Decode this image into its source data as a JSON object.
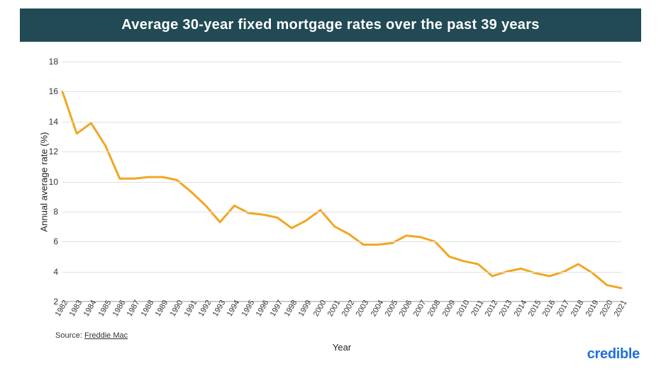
{
  "title": "Average 30-year fixed mortgage rates over the past 39 years",
  "chart": {
    "type": "line",
    "y_label": "Annual average rate (%)",
    "x_label": "Year",
    "ylim": [
      2,
      18
    ],
    "ytick_step": 2,
    "yticks": [
      2,
      4,
      6,
      8,
      10,
      12,
      14,
      16,
      18
    ],
    "grid_color": "#e0e0e0",
    "line_color": "#f2a623",
    "line_width": 3,
    "background_color": "#ffffff",
    "title_background": "#214a54",
    "title_color": "#ffffff",
    "title_fontsize": 20,
    "label_fontsize": 13,
    "tick_fontsize": 12,
    "xtick_rotation_deg": -60,
    "years": [
      1982,
      1983,
      1984,
      1985,
      1986,
      1987,
      1988,
      1989,
      1990,
      1991,
      1992,
      1993,
      1994,
      1995,
      1996,
      1997,
      1998,
      1999,
      2000,
      2001,
      2002,
      2003,
      2004,
      2005,
      2006,
      2007,
      2008,
      2009,
      2010,
      2011,
      2012,
      2013,
      2014,
      2015,
      2016,
      2017,
      2018,
      2019,
      2020,
      2021
    ],
    "values": [
      16.0,
      13.2,
      13.9,
      12.4,
      10.2,
      10.2,
      10.3,
      10.3,
      10.1,
      9.3,
      8.4,
      7.3,
      8.4,
      7.9,
      7.8,
      7.6,
      6.9,
      7.4,
      8.1,
      7.0,
      6.5,
      5.8,
      5.8,
      5.9,
      6.4,
      6.3,
      6.0,
      5.0,
      4.7,
      4.5,
      3.7,
      4.0,
      4.2,
      3.9,
      3.7,
      4.0,
      4.5,
      3.9,
      3.1,
      2.9
    ]
  },
  "source_prefix": "Source: ",
  "source_name": "Freddie Mac",
  "brand": "credible",
  "brand_color": "#1f6fe0"
}
